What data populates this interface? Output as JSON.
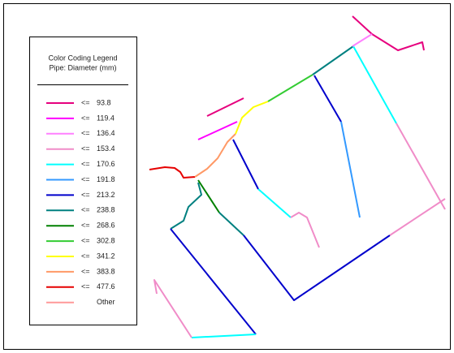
{
  "legend": {
    "title": [
      "Color Coding Legend",
      "Pipe: Diameter (mm)"
    ],
    "entries": [
      {
        "op": "<=",
        "label": "93.8",
        "color": "#e6007e"
      },
      {
        "op": "<=",
        "label": "119.4",
        "color": "#ff00ff"
      },
      {
        "op": "<=",
        "label": "136.4",
        "color": "#ff80ff"
      },
      {
        "op": "<=",
        "label": "153.4",
        "color": "#f08cc8"
      },
      {
        "op": "<=",
        "label": "170.6",
        "color": "#00ffff"
      },
      {
        "op": "<=",
        "label": "191.8",
        "color": "#3399ff"
      },
      {
        "op": "<=",
        "label": "213.2",
        "color": "#0000cc"
      },
      {
        "op": "<=",
        "label": "238.8",
        "color": "#008080"
      },
      {
        "op": "<=",
        "label": "268.6",
        "color": "#008000"
      },
      {
        "op": "<=",
        "label": "302.8",
        "color": "#33cc33"
      },
      {
        "op": "<=",
        "label": "341.2",
        "color": "#ffff00"
      },
      {
        "op": "<=",
        "label": "383.8",
        "color": "#ff9966"
      },
      {
        "op": "<=",
        "label": "477.6",
        "color": "#e60000"
      },
      {
        "label": "Other",
        "color": "#ff9999"
      }
    ]
  }
}
